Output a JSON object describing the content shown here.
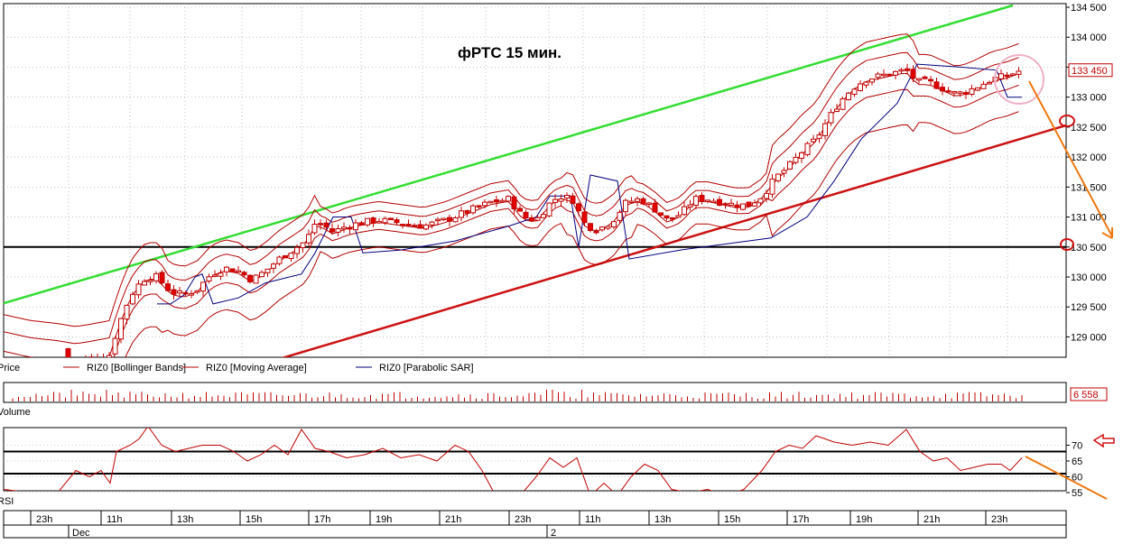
{
  "chart_data": [
    {
      "type": "candlestick",
      "title": "фРТС   15 мин.",
      "y_ticks": [
        129000,
        129500,
        130000,
        130500,
        131000,
        131500,
        132000,
        132500,
        133000,
        133500,
        134000,
        134500
      ],
      "y_tick_labels": [
        "129 000",
        "129 500",
        "130 000",
        "130 500",
        "131 000",
        "131 500",
        "132 000",
        "132 500",
        "133 000",
        "133 500",
        "134 000",
        "134 500"
      ],
      "ylim": [
        128600,
        134500
      ],
      "last_price": 133450,
      "last_price_label": "133 450",
      "legend": [
        "Price",
        "RIZ0 [Bollinger Bands]",
        "RIZ0 [Moving Average]",
        "RIZ0 [Parabolic SAR]"
      ],
      "colors": {
        "bull": "#ffffff",
        "bear": "#e00000",
        "bollinger": "#b30000",
        "moving_average": "#b30000",
        "sar": "#00007f",
        "upper_trend": "#33dd33",
        "lower_trend": "#cc1111",
        "support": "#000000",
        "arrow": "#ee7711"
      },
      "support_level": 130500,
      "upper_trendline": [
        [
          0,
          129560
        ],
        [
          1118,
          134530
        ]
      ],
      "lower_trendline": [
        [
          298,
          128600
        ],
        [
          1184,
          132560
        ]
      ],
      "guide_points": [
        [
          0,
          128800
        ],
        [
          30,
          128700
        ],
        [
          60,
          128650
        ],
        [
          80,
          128600
        ],
        [
          100,
          128650
        ],
        [
          118,
          128700
        ],
        [
          125,
          129100
        ],
        [
          135,
          129500
        ],
        [
          145,
          129800
        ],
        [
          158,
          130000
        ],
        [
          170,
          130000
        ],
        [
          185,
          129750
        ],
        [
          200,
          129700
        ],
        [
          215,
          129800
        ],
        [
          230,
          130050
        ],
        [
          245,
          130150
        ],
        [
          260,
          130100
        ],
        [
          275,
          129950
        ],
        [
          290,
          130100
        ],
        [
          305,
          130300
        ],
        [
          320,
          130450
        ],
        [
          335,
          130600
        ],
        [
          345,
          130900
        ],
        [
          355,
          130850
        ],
        [
          365,
          130750
        ],
        [
          380,
          130850
        ],
        [
          395,
          130900
        ],
        [
          415,
          130950
        ],
        [
          440,
          130900
        ],
        [
          465,
          130850
        ],
        [
          490,
          130950
        ],
        [
          515,
          131100
        ],
        [
          540,
          131250
        ],
        [
          560,
          131300
        ],
        [
          575,
          131000
        ],
        [
          590,
          130950
        ],
        [
          603,
          131200
        ],
        [
          615,
          131350
        ],
        [
          630,
          131300
        ],
        [
          645,
          130850
        ],
        [
          660,
          130800
        ],
        [
          675,
          130950
        ],
        [
          690,
          131250
        ],
        [
          705,
          131300
        ],
        [
          720,
          131150
        ],
        [
          735,
          130950
        ],
        [
          750,
          131050
        ],
        [
          765,
          131300
        ],
        [
          780,
          131300
        ],
        [
          795,
          131250
        ],
        [
          810,
          131200
        ],
        [
          825,
          131200
        ],
        [
          840,
          131350
        ],
        [
          855,
          131650
        ],
        [
          870,
          131850
        ],
        [
          885,
          132100
        ],
        [
          900,
          132300
        ],
        [
          912,
          132600
        ],
        [
          925,
          132900
        ],
        [
          940,
          133150
        ],
        [
          955,
          133300
        ],
        [
          970,
          133350
        ],
        [
          985,
          133400
        ],
        [
          1000,
          133450
        ],
        [
          1012,
          133250
        ],
        [
          1025,
          133250
        ],
        [
          1040,
          133150
        ],
        [
          1055,
          133050
        ],
        [
          1068,
          133100
        ],
        [
          1082,
          133200
        ],
        [
          1095,
          133300
        ],
        [
          1110,
          133350
        ],
        [
          1128,
          133450
        ]
      ],
      "sar_points": [
        [
          170,
          129550
        ],
        [
          185,
          129550
        ],
        [
          200,
          129700
        ],
        [
          212,
          130000
        ],
        [
          220,
          130050
        ],
        [
          232,
          129550
        ],
        [
          260,
          129650
        ],
        [
          290,
          129900
        ],
        [
          330,
          130050
        ],
        [
          345,
          130400
        ],
        [
          365,
          131000
        ],
        [
          385,
          131000
        ],
        [
          398,
          130400
        ],
        [
          440,
          130450
        ],
        [
          500,
          130600
        ],
        [
          560,
          130850
        ],
        [
          590,
          131000
        ],
        [
          605,
          131350
        ],
        [
          628,
          131350
        ],
        [
          637,
          130500
        ],
        [
          650,
          131700
        ],
        [
          680,
          131600
        ],
        [
          693,
          130300
        ],
        [
          750,
          130450
        ],
        [
          850,
          130650
        ],
        [
          890,
          131000
        ],
        [
          920,
          131600
        ],
        [
          950,
          132300
        ],
        [
          990,
          132900
        ],
        [
          1012,
          133550
        ],
        [
          1060,
          133500
        ],
        [
          1100,
          133450
        ],
        [
          1112,
          133000
        ],
        [
          1128,
          133000
        ]
      ]
    },
    {
      "type": "bar",
      "series_name": "Volume",
      "last_value_label": "6 558"
    },
    {
      "type": "line",
      "series_name": "RSI",
      "ylim": [
        55,
        75
      ],
      "y_ticks": [
        55,
        60,
        65,
        70
      ],
      "y_tick_labels": [
        "55",
        "60",
        "65",
        "70"
      ],
      "levels": [
        68,
        61
      ],
      "values_x": [
        0,
        30,
        60,
        80,
        95,
        108,
        118,
        125,
        140,
        150,
        160,
        175,
        190,
        205,
        220,
        240,
        255,
        270,
        285,
        300,
        315,
        330,
        345,
        360,
        380,
        400,
        420,
        440,
        460,
        480,
        500,
        515,
        530,
        545,
        560,
        575,
        590,
        605,
        620,
        635,
        650,
        665,
        680,
        695,
        710,
        725,
        740,
        760,
        780,
        800,
        820,
        840,
        855,
        870,
        885,
        900,
        920,
        940,
        960,
        980,
        1000,
        1015,
        1030,
        1045,
        1060,
        1075,
        1090,
        1105,
        1115,
        1128
      ],
      "values": [
        56,
        55,
        55,
        62,
        60,
        62,
        58,
        68,
        70,
        72,
        76,
        70,
        68,
        69,
        70,
        70,
        68,
        65,
        67,
        70,
        67,
        75,
        69,
        68,
        66,
        67,
        69,
        66,
        67,
        65,
        70,
        68,
        62,
        54,
        55,
        55,
        60,
        66,
        63,
        66,
        54,
        58,
        54,
        60,
        64,
        62,
        56,
        55,
        56,
        54,
        56,
        62,
        68,
        70,
        69,
        73,
        71,
        70,
        71,
        70,
        75,
        68,
        65,
        66,
        62,
        63,
        64,
        64,
        62,
        66
      ]
    }
  ],
  "x_axis": {
    "ticks": [
      "23h",
      "11h",
      "13h",
      "15h",
      "17h",
      "19h",
      "21h",
      "23h",
      "11h",
      "13h",
      "15h",
      "17h",
      "19h",
      "21h",
      "23h"
    ],
    "dates": [
      "Dec",
      "2"
    ]
  }
}
